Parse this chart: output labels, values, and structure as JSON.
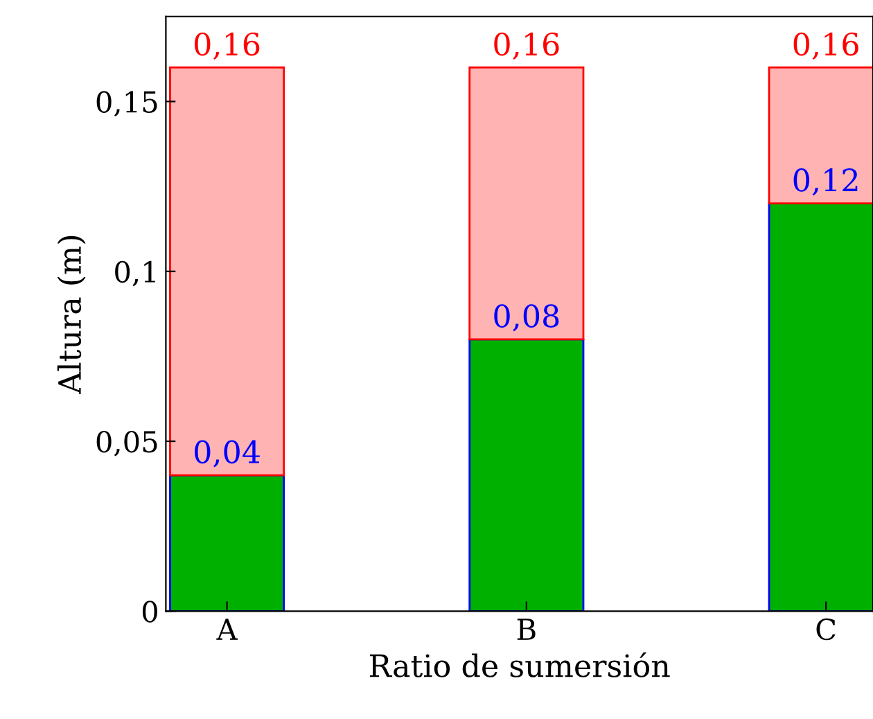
{
  "chart_data": {
    "type": "bar",
    "stacked": true,
    "xlabel": "Ratio de sumersión",
    "ylabel": "Altura (m)",
    "categories": [
      "A",
      "B",
      "C"
    ],
    "series": [
      {
        "color": "#00b000",
        "values": [
          0.04,
          0.08,
          0.12
        ],
        "value_labels": [
          "0,04",
          "0,08",
          "0,12"
        ]
      },
      {
        "color": "#ffb3b3",
        "values": [
          0.12,
          0.08,
          0.04
        ]
      }
    ],
    "totals": [
      "0,16",
      "0,16",
      "0,16"
    ],
    "ylim": [
      0,
      0.175
    ],
    "yticks": [
      0,
      {
        "value": 0.05,
        "label": "0,05"
      },
      {
        "value": 0.1,
        "label": "0,1"
      },
      {
        "value": 0.15,
        "label": "0,15"
      }
    ],
    "grid": false,
    "legend": false
  }
}
